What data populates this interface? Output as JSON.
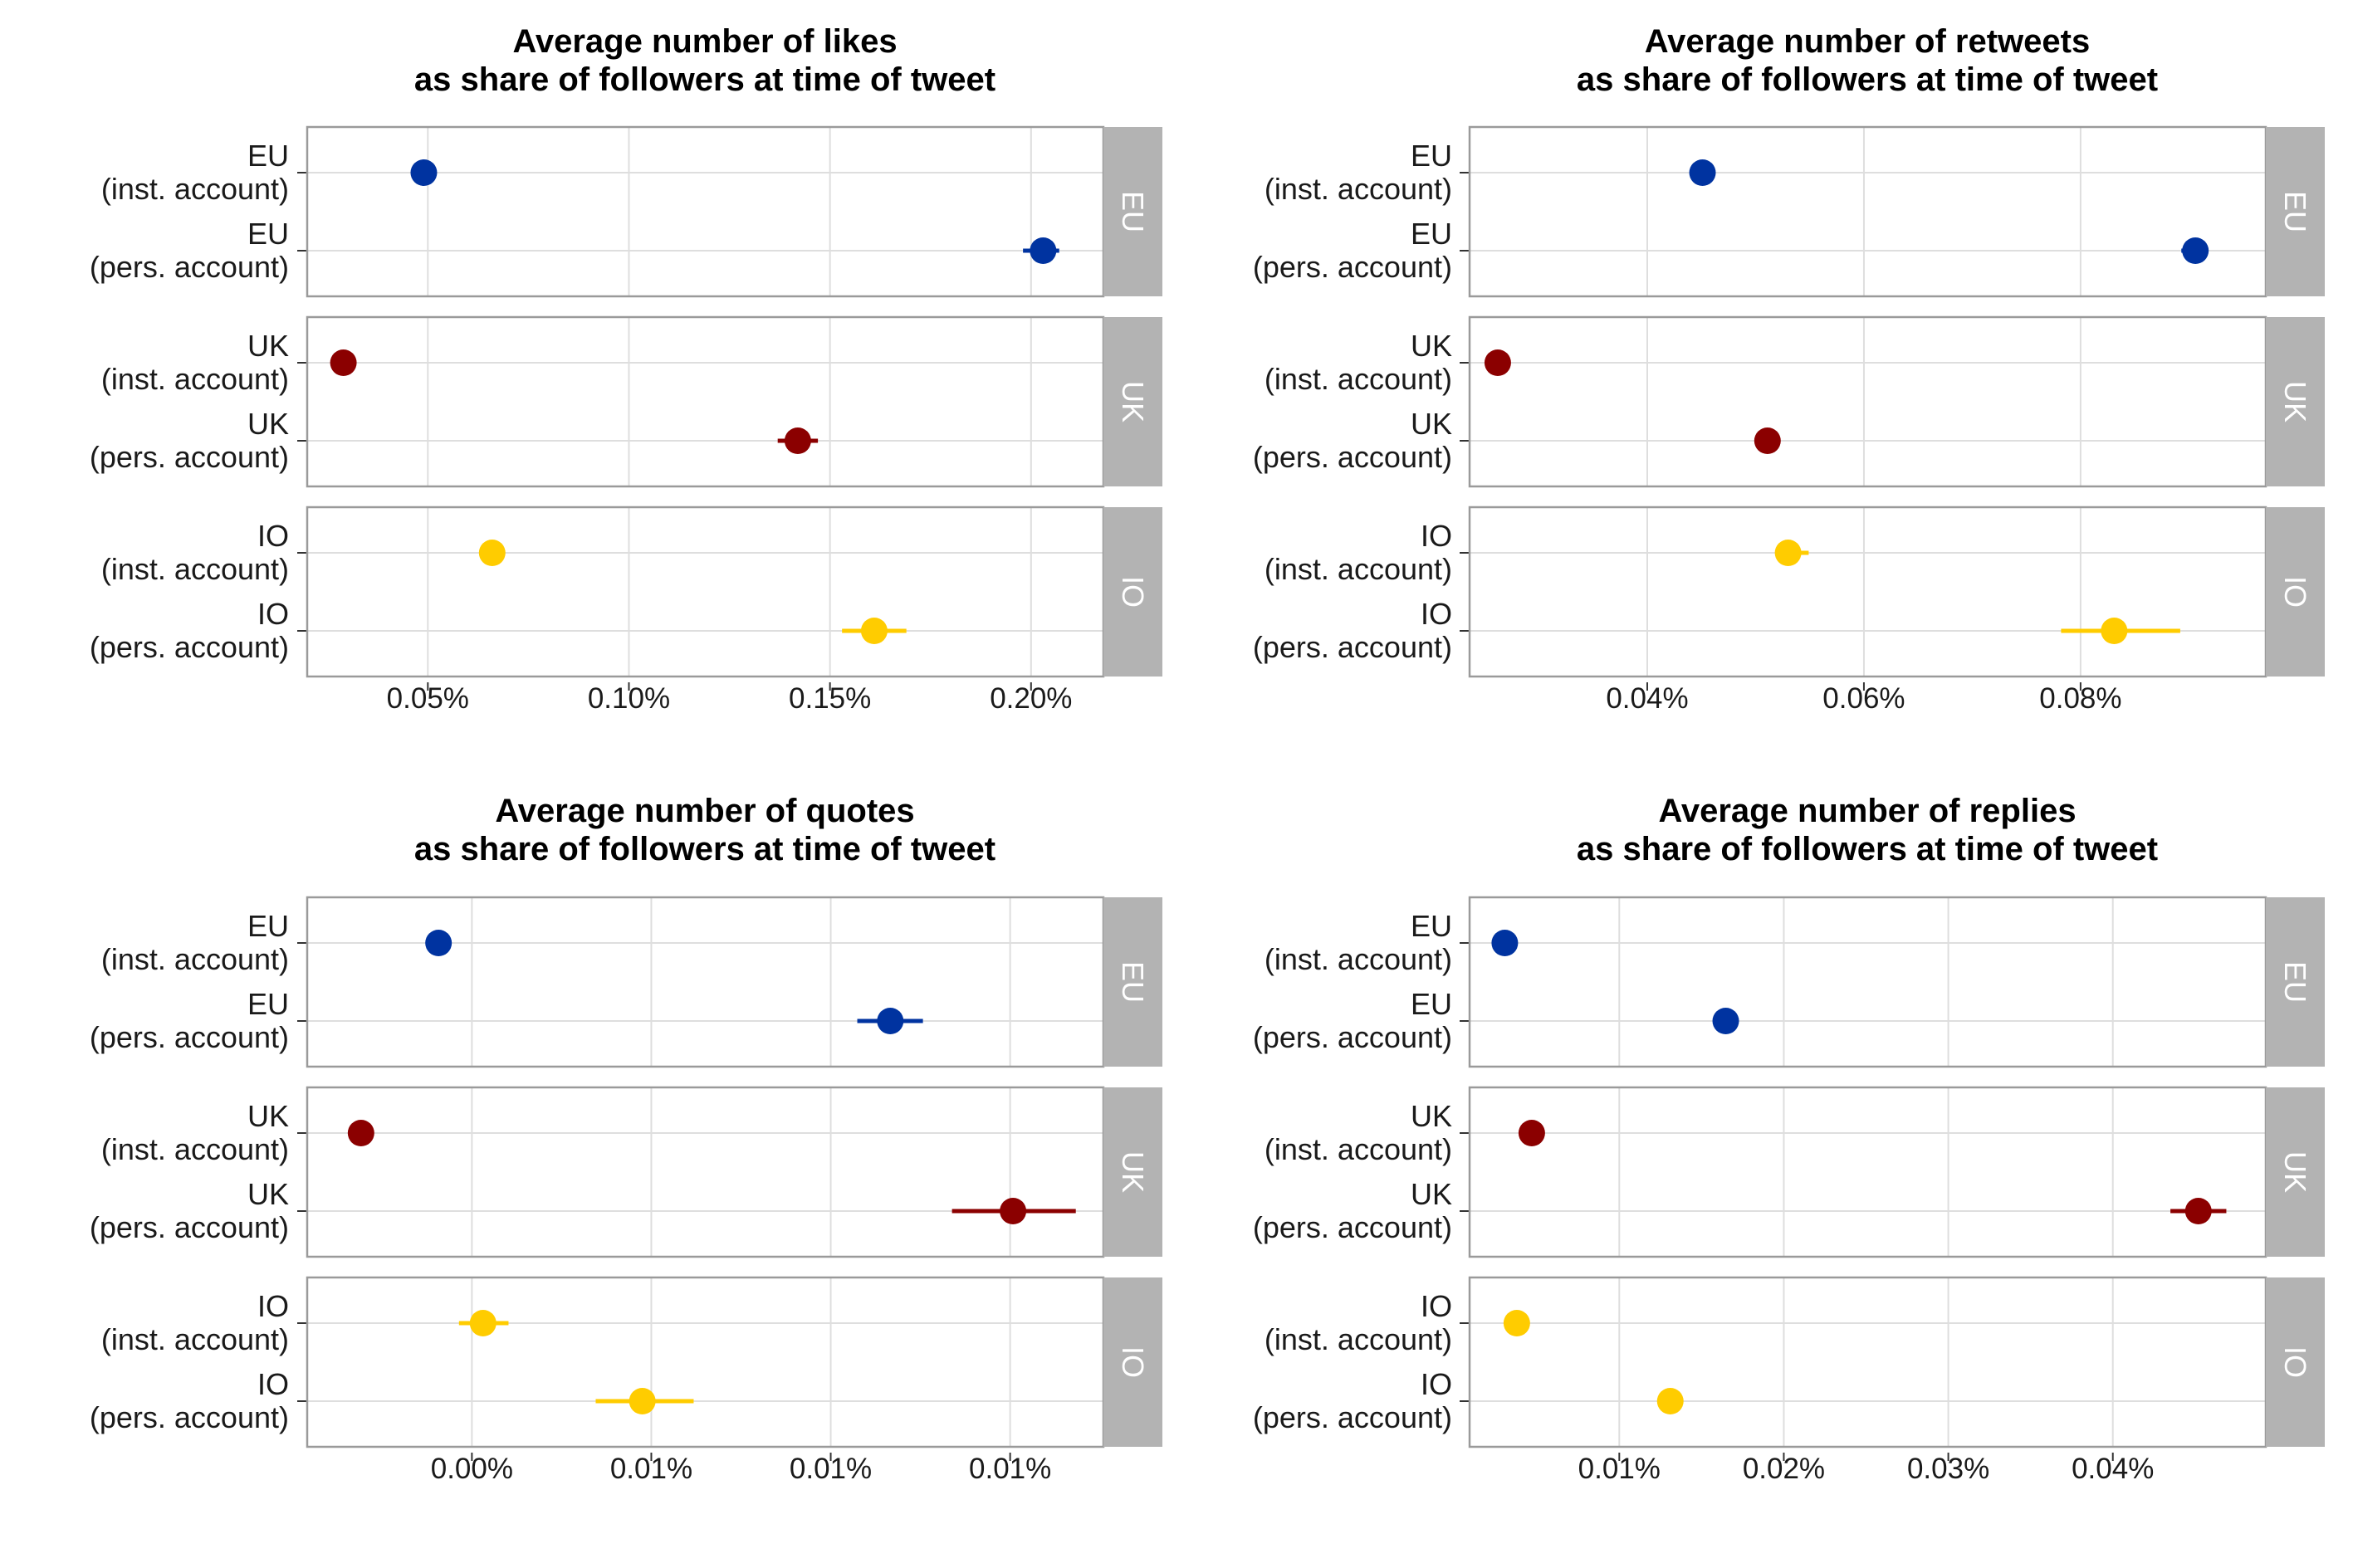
{
  "colors": {
    "EU": "#0033A0",
    "UK": "#8B0000",
    "IO": "#FFCC00",
    "strip": "#B3B3B3",
    "grid": "#DEDEDE",
    "panel_border": "#9A9A9A"
  },
  "chart_data": [
    {
      "type": "scatter",
      "title": "Average number of likes",
      "subtitle": "as share of followers at time of tweet",
      "xlim": [
        0.0002,
        0.00218
      ],
      "x_ticks": [
        0.0005,
        0.001,
        0.0015,
        0.002
      ],
      "x_tick_labels": [
        "0.05%",
        "0.10%",
        "0.15%",
        "0.20%"
      ],
      "facets": [
        {
          "name": "EU",
          "rows": [
            {
              "label": [
                "EU",
                "(inst. account)"
              ],
              "value": 0.00049,
              "lo": 0.00049,
              "hi": 0.00049
            },
            {
              "label": [
                "EU",
                "(pers. account)"
              ],
              "value": 0.00203,
              "lo": 0.00198,
              "hi": 0.00207
            }
          ]
        },
        {
          "name": "UK",
          "rows": [
            {
              "label": [
                "UK",
                "(inst. account)"
              ],
              "value": 0.00029,
              "lo": 0.00029,
              "hi": 0.00029
            },
            {
              "label": [
                "UK",
                "(pers. account)"
              ],
              "value": 0.00142,
              "lo": 0.00137,
              "hi": 0.00147
            }
          ]
        },
        {
          "name": "IO",
          "rows": [
            {
              "label": [
                "IO",
                "(inst. account)"
              ],
              "value": 0.00066,
              "lo": 0.00066,
              "hi": 0.00066
            },
            {
              "label": [
                "IO",
                "(pers. account)"
              ],
              "value": 0.00161,
              "lo": 0.00153,
              "hi": 0.00169
            }
          ]
        }
      ]
    },
    {
      "type": "scatter",
      "title": "Average number of retweets",
      "subtitle": "as share of followers at time of tweet",
      "xlim": [
        0.000236,
        0.000971
      ],
      "x_ticks": [
        0.0004,
        0.0006,
        0.0008
      ],
      "x_tick_labels": [
        "0.04%",
        "0.06%",
        "0.08%"
      ],
      "facets": [
        {
          "name": "EU",
          "rows": [
            {
              "label": [
                "EU",
                "(inst. account)"
              ],
              "value": 0.000451,
              "lo": 0.000451,
              "hi": 0.000451
            },
            {
              "label": [
                "EU",
                "(pers. account)"
              ],
              "value": 0.000906,
              "lo": 0.000893,
              "hi": 0.000916
            }
          ]
        },
        {
          "name": "UK",
          "rows": [
            {
              "label": [
                "UK",
                "(inst. account)"
              ],
              "value": 0.000262,
              "lo": 0.000262,
              "hi": 0.000262
            },
            {
              "label": [
                "UK",
                "(pers. account)"
              ],
              "value": 0.000511,
              "lo": 0.000511,
              "hi": 0.000511
            }
          ]
        },
        {
          "name": "IO",
          "rows": [
            {
              "label": [
                "IO",
                "(inst. account)"
              ],
              "value": 0.00053,
              "lo": 0.000521,
              "hi": 0.000549
            },
            {
              "label": [
                "IO",
                "(pers. account)"
              ],
              "value": 0.000831,
              "lo": 0.000782,
              "hi": 0.000892
            }
          ]
        }
      ]
    },
    {
      "type": "scatter",
      "title": "Average number of quotes",
      "subtitle": "as share of followers at time of tweet",
      "xlim": [
        -4.59e-05,
        0.000176
      ],
      "x_ticks": [
        0.0,
        5e-05,
        0.0001,
        0.00015
      ],
      "x_tick_labels": [
        "0.00%",
        "0.01%",
        "0.01%",
        "0.01%"
      ],
      "facets": [
        {
          "name": "EU",
          "rows": [
            {
              "label": [
                "EU",
                "(inst. account)"
              ],
              "value": -9.3e-06,
              "lo": -9.3e-06,
              "hi": -9.3e-06
            },
            {
              "label": [
                "EU",
                "(pers. account)"
              ],
              "value": 0.0001166,
              "lo": 0.0001074,
              "hi": 0.0001257
            }
          ]
        },
        {
          "name": "UK",
          "rows": [
            {
              "label": [
                "UK",
                "(inst. account)"
              ],
              "value": -3.09e-05,
              "lo": -3.09e-05,
              "hi": -3.09e-05
            },
            {
              "label": [
                "UK",
                "(pers. account)"
              ],
              "value": 0.0001508,
              "lo": 0.0001338,
              "hi": 0.0001683
            }
          ]
        },
        {
          "name": "IO",
          "rows": [
            {
              "label": [
                "IO",
                "(inst. account)"
              ],
              "value": 3.1e-06,
              "lo": -3.6e-06,
              "hi": 1.02e-05
            },
            {
              "label": [
                "IO",
                "(pers. account)"
              ],
              "value": 4.75e-05,
              "lo": 3.45e-05,
              "hi": 6.18e-05
            }
          ]
        }
      ]
    },
    {
      "type": "scatter",
      "title": "Average number of replies",
      "subtitle": "as share of followers at time of tweet",
      "xlim": [
        9e-06,
        0.000493
      ],
      "x_ticks": [
        0.0001,
        0.0002,
        0.0003,
        0.0004
      ],
      "x_tick_labels": [
        "0.01%",
        "0.02%",
        "0.03%",
        "0.04%"
      ],
      "facets": [
        {
          "name": "EU",
          "rows": [
            {
              "label": [
                "EU",
                "(inst. account)"
              ],
              "value": 3.04e-05,
              "lo": 3.04e-05,
              "hi": 3.04e-05
            },
            {
              "label": [
                "EU",
                "(pers. account)"
              ],
              "value": 0.0001647,
              "lo": 0.0001647,
              "hi": 0.0001647
            }
          ]
        },
        {
          "name": "UK",
          "rows": [
            {
              "label": [
                "UK",
                "(inst. account)"
              ],
              "value": 4.68e-05,
              "lo": 4.68e-05,
              "hi": 4.68e-05
            },
            {
              "label": [
                "UK",
                "(pers. account)"
              ],
              "value": 0.000452,
              "lo": 0.000435,
              "hi": 0.000469
            }
          ]
        },
        {
          "name": "IO",
          "rows": [
            {
              "label": [
                "IO",
                "(inst. account)"
              ],
              "value": 3.77e-05,
              "lo": 3.77e-05,
              "hi": 3.77e-05
            },
            {
              "label": [
                "IO",
                "(pers. account)"
              ],
              "value": 0.000131,
              "lo": 0.000131,
              "hi": 0.000131
            }
          ]
        }
      ]
    }
  ]
}
